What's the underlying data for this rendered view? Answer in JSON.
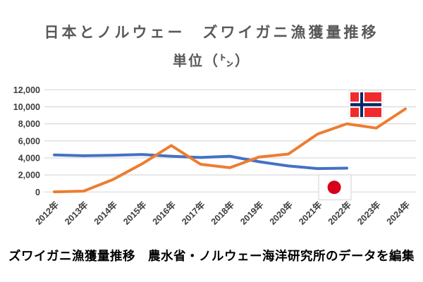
{
  "page": {
    "title": "日本とノルウェー　ズワイガニ漁獲量推移",
    "unit_label": "単位（㌧）",
    "caption": "ズワイガニ漁獲量推移　農水省・ノルウェー海洋研究所のデータを編集"
  },
  "chart_data": {
    "type": "line",
    "title": "日本とノルウェー　ズワイガニ漁獲量推移",
    "unit": "トン",
    "xlabel": "",
    "ylabel": "",
    "ylim": [
      0,
      12000
    ],
    "grid": true,
    "legend": "country flag icons placed beside the lines (Norway flag upper right, Japan flag lower right)",
    "categories": [
      "2012年",
      "2013年",
      "2014年",
      "2015年",
      "2016年",
      "2017年",
      "2018年",
      "2019年",
      "2020年",
      "2021年",
      "2022年",
      "2023年",
      "2024年"
    ],
    "y_ticks": [
      {
        "value": 0,
        "label": "0"
      },
      {
        "value": 2000,
        "label": "2,000"
      },
      {
        "value": 4000,
        "label": "4,000"
      },
      {
        "value": 6000,
        "label": "6,000"
      },
      {
        "value": 8000,
        "label": "8,000"
      },
      {
        "value": 10000,
        "label": "10,000"
      },
      {
        "value": 12000,
        "label": "12,000"
      }
    ],
    "series": [
      {
        "name": "日本",
        "color": "#4472C4",
        "values": [
          4350,
          4250,
          4300,
          4400,
          4200,
          4050,
          4200,
          3550,
          3050,
          2750,
          2800,
          null,
          null
        ]
      },
      {
        "name": "ノルウェー",
        "color": "#ED7D31",
        "values": [
          20,
          100,
          1450,
          3300,
          5450,
          3250,
          2850,
          4100,
          4450,
          6800,
          8000,
          7500,
          9750
        ]
      }
    ],
    "colors": {
      "gridline": "#d9d9d9",
      "axis_text": "#3d3d3d",
      "norway_red": "#ef2b2d",
      "norway_navy": "#002868",
      "japan_red": "#d70019",
      "flag_border": "#d9d9d9",
      "white": "#ffffff"
    }
  }
}
